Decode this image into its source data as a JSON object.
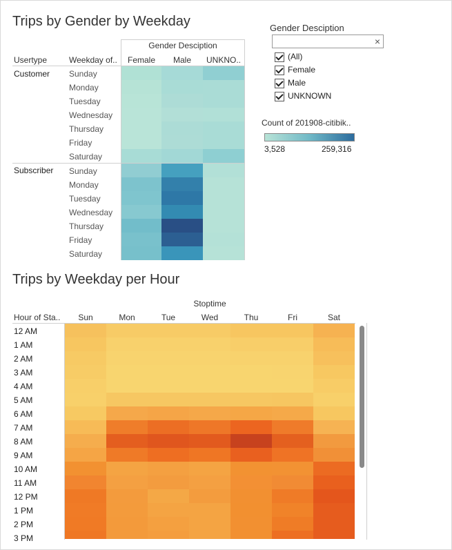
{
  "gender_chart": {
    "title": "Trips by Gender by Weekday",
    "col_header": "Gender Desciption",
    "row_headers": [
      "Usertype",
      "Weekday of.."
    ],
    "columns": [
      "Female",
      "Male",
      "UNKNO.."
    ],
    "groups": [
      {
        "name": "Customer",
        "days": [
          "Sunday",
          "Monday",
          "Tuesday",
          "Wednesday",
          "Thursday",
          "Friday",
          "Saturday"
        ],
        "colors": [
          [
            "#b0e1d5",
            "#a6dad7",
            "#90cfd2"
          ],
          [
            "#b6e3d6",
            "#a9dcd6",
            "#aadcd6"
          ],
          [
            "#b8e4d7",
            "#addcd6",
            "#aadcd6"
          ],
          [
            "#b9e4d8",
            "#b2dfd7",
            "#b1e0d7"
          ],
          [
            "#b9e4d8",
            "#acdcd6",
            "#a9dcd6"
          ],
          [
            "#b9e4d8",
            "#addcd6",
            "#a9dcd6"
          ],
          [
            "#a8dcd6",
            "#a2d8d6",
            "#8ecfd2"
          ]
        ]
      },
      {
        "name": "Subscriber",
        "days": [
          "Sunday",
          "Monday",
          "Tuesday",
          "Wednesday",
          "Thursday",
          "Friday",
          "Saturday"
        ],
        "colors": [
          [
            "#91cdd2",
            "#45a0bf",
            "#b2e0d7"
          ],
          [
            "#7dc3cd",
            "#3380ab",
            "#b6e2d7"
          ],
          [
            "#7fc5ce",
            "#2e78a7",
            "#b6e2d7"
          ],
          [
            "#87c9d0",
            "#338bb2",
            "#b6e2d7"
          ],
          [
            "#72bdca",
            "#294f85",
            "#b6e2d7"
          ],
          [
            "#79c1cc",
            "#2c5f92",
            "#b4e1d7"
          ],
          [
            "#77c0cb",
            "#3a95ba",
            "#b6e2d7"
          ]
        ]
      }
    ]
  },
  "filter": {
    "title": "Gender Desciption",
    "search_clear": "×",
    "options": [
      "(All)",
      "Female",
      "Male",
      "UNKNOWN"
    ]
  },
  "legend": {
    "title": "Count of 201908-citibik..",
    "min_label": "3,528",
    "max_label": "259,316"
  },
  "hour_chart": {
    "title": "Trips by Weekday per Hour",
    "col_header": "Stoptime",
    "row_header": "Hour of Sta..",
    "days": [
      "Sun",
      "Mon",
      "Tue",
      "Wed",
      "Thu",
      "Fri",
      "Sat"
    ],
    "hours": [
      "12 AM",
      "1 AM",
      "2 AM",
      "3 AM",
      "4 AM",
      "5 AM",
      "6 AM",
      "7 AM",
      "8 AM",
      "9 AM",
      "10 AM",
      "11 AM",
      "12 PM",
      "1 PM",
      "2 PM",
      "3 PM"
    ],
    "colors": [
      [
        "#f6c15d",
        "#f7cb66",
        "#f7cb66",
        "#f7cb66",
        "#f7c660",
        "#f7c660",
        "#f6b251"
      ],
      [
        "#f7c660",
        "#f8d16c",
        "#f8d16c",
        "#f8d16c",
        "#f8ce69",
        "#f8ce69",
        "#f7bc58"
      ],
      [
        "#f7ca64",
        "#f8d36e",
        "#f8d36e",
        "#f8d36e",
        "#f8d26d",
        "#f8d26d",
        "#f7c05c"
      ],
      [
        "#f7cc66",
        "#f8d56f",
        "#f8d56f",
        "#f8d56f",
        "#f8d56f",
        "#f8d46f",
        "#f7c861"
      ],
      [
        "#f8cf69",
        "#f8d56f",
        "#f8d56f",
        "#f8d56f",
        "#f8d56f",
        "#f8d56f",
        "#f8cc66"
      ],
      [
        "#f8d06a",
        "#f6c762",
        "#f6c762",
        "#f6c762",
        "#f6c762",
        "#f6c661",
        "#f8d06a"
      ],
      [
        "#f7c962",
        "#f5a84a",
        "#f5a547",
        "#f5a849",
        "#f5a746",
        "#f5a949",
        "#f7c760"
      ],
      [
        "#f7bb57",
        "#ef7d2a",
        "#ec6e24",
        "#ee7728",
        "#ec6520",
        "#ef7b2a",
        "#f6b353"
      ],
      [
        "#f5ad4d",
        "#e45e1f",
        "#e0561e",
        "#e25a1e",
        "#c7421e",
        "#e4601f",
        "#f29a3f"
      ],
      [
        "#f5a545",
        "#ef7a27",
        "#ee6e22",
        "#ef7624",
        "#e9601f",
        "#ef7325",
        "#f19037"
      ],
      [
        "#f29131",
        "#f4a443",
        "#f4a041",
        "#f4a443",
        "#f29232",
        "#f29233",
        "#ec6b22"
      ],
      [
        "#f18530",
        "#f4a042",
        "#f39c3f",
        "#f4a042",
        "#f39034",
        "#f18b34",
        "#e9601e"
      ],
      [
        "#ef7925",
        "#f39b3d",
        "#f4a846",
        "#f39c3e",
        "#f29031",
        "#ef7b27",
        "#e4561c"
      ],
      [
        "#f07b26",
        "#f39b3c",
        "#f4a443",
        "#f4a443",
        "#f29030",
        "#f08329",
        "#e65c1e"
      ],
      [
        "#f07a25",
        "#f39a3b",
        "#f4a040",
        "#f4a443",
        "#f29031",
        "#ef7c26",
        "#e65c1e"
      ],
      [
        "#ef7724",
        "#f39a3b",
        "#f49d3e",
        "#f4a443",
        "#f29031",
        "#ed6f22",
        "#e65c1e"
      ]
    ]
  }
}
